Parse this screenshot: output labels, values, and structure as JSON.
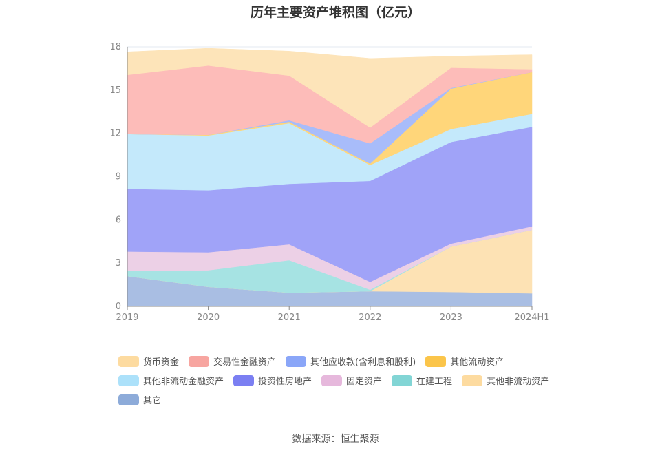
{
  "chart_data": {
    "type": "area",
    "stacked": true,
    "title": "历年主要资产堆积图（亿元）",
    "categories": [
      "2019",
      "2020",
      "2021",
      "2022",
      "2023",
      "2024H1"
    ],
    "ylim": [
      0,
      18
    ],
    "yticks": [
      0,
      3,
      6,
      9,
      12,
      15,
      18
    ],
    "grid": true,
    "legend_position": "bottom",
    "series": [
      {
        "name": "其它",
        "color": "#a9bee3",
        "values": [
          2.1,
          1.35,
          0.95,
          1.05,
          1.0,
          0.9
        ]
      },
      {
        "name": "其他非流动资产",
        "color": "#fde2b4",
        "values": [
          0.0,
          0.0,
          0.0,
          0.0,
          3.15,
          4.4
        ]
      },
      {
        "name": "在建工程",
        "color": "#a6e3e3",
        "values": [
          0.35,
          1.15,
          2.25,
          0.1,
          0.0,
          0.0
        ]
      },
      {
        "name": "固定资产",
        "color": "#ecd0e6",
        "values": [
          1.35,
          1.25,
          1.1,
          0.55,
          0.2,
          0.25
        ]
      },
      {
        "name": "投资性房地产",
        "color": "#a0a3f8",
        "values": [
          4.35,
          4.3,
          4.2,
          7.0,
          7.05,
          6.9
        ]
      },
      {
        "name": "其他非流动金融资产",
        "color": "#c4e9fb",
        "values": [
          3.8,
          3.8,
          4.2,
          1.1,
          0.9,
          0.9
        ]
      },
      {
        "name": "其他流动资产",
        "color": "#ffd67a",
        "values": [
          0.0,
          0.05,
          0.1,
          0.1,
          2.8,
          2.9
        ]
      },
      {
        "name": "其他应收款(含利息和股利)",
        "color": "#a8bcfa",
        "values": [
          0.0,
          0.0,
          0.1,
          1.4,
          0.05,
          0.0
        ]
      },
      {
        "name": "交易性金融资产",
        "color": "#fdbcb9",
        "values": [
          4.1,
          4.8,
          3.1,
          1.1,
          1.4,
          0.2
        ]
      },
      {
        "name": "货币资金",
        "color": "#fde4b9",
        "values": [
          1.6,
          1.2,
          1.7,
          4.8,
          0.8,
          1.0
        ]
      }
    ]
  },
  "legend": {
    "rows": [
      [
        {
          "label": "货币资金",
          "color": "#fddba0"
        },
        {
          "label": "交易性金融资产",
          "color": "#f7a5a0"
        },
        {
          "label": "其他应收款(含利息和股利)",
          "color": "#8aa6f8"
        },
        {
          "label": "其他流动资产",
          "color": "#fbc54a"
        }
      ],
      [
        {
          "label": "其他非流动金融资产",
          "color": "#ace1fa"
        },
        {
          "label": "投资性房地产",
          "color": "#7b7ff2"
        },
        {
          "label": "固定资产",
          "color": "#e6b8dc"
        },
        {
          "label": "在建工程",
          "color": "#82d5d5"
        },
        {
          "label": "其他非流动资产",
          "color": "#fddba0"
        }
      ],
      [
        {
          "label": "其它",
          "color": "#8dabd9"
        }
      ]
    ]
  },
  "source": "数据来源：恒生聚源"
}
